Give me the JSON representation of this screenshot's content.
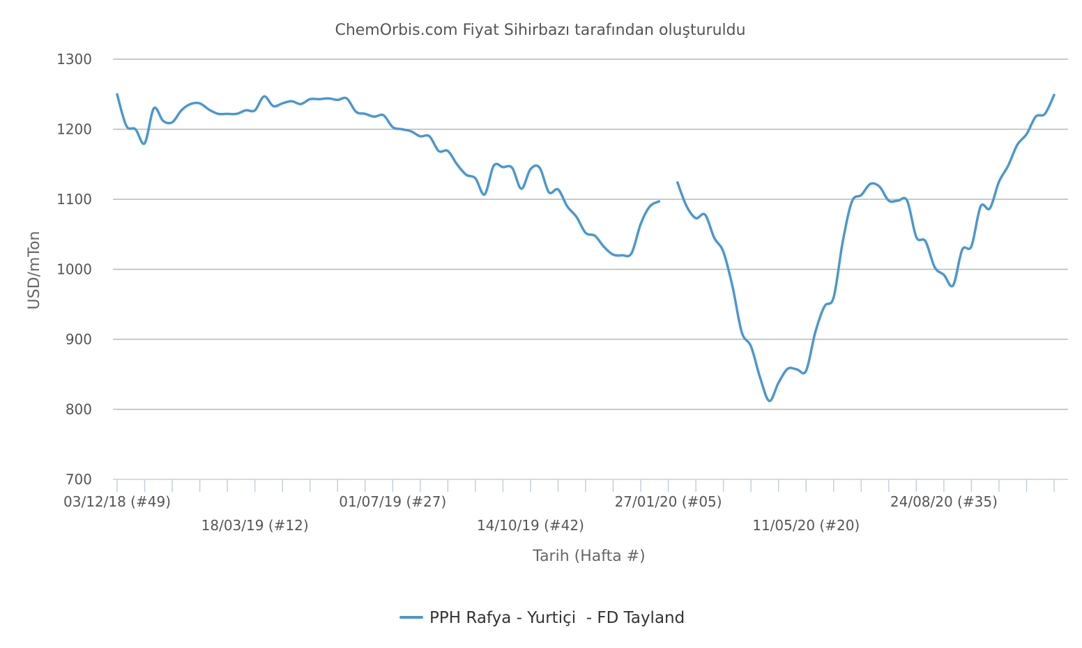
{
  "chart_data": {
    "type": "line",
    "subtitle": "ChemOrbis.com Fiyat Sihirbazı tarafından oluşturuldu",
    "ylabel": "USD/mTon",
    "xlabel": "Tarih (Hafta #)",
    "ylim": [
      700,
      1300
    ],
    "yticks": [
      700,
      800,
      900,
      1000,
      1100,
      1200,
      1300
    ],
    "grid": true,
    "legend_position": "bottom-center",
    "x_tick_count": 35,
    "x_labels": [
      {
        "index": 0,
        "label": "03/12/18 (#49)",
        "row": 0
      },
      {
        "index": 5,
        "label": "18/03/19 (#12)",
        "row": 1
      },
      {
        "index": 10,
        "label": "01/07/19 (#27)",
        "row": 0
      },
      {
        "index": 15,
        "label": "14/10/19 (#42)",
        "row": 1
      },
      {
        "index": 20,
        "label": "27/01/20 (#05)",
        "row": 0
      },
      {
        "index": 25,
        "label": "11/05/20 (#20)",
        "row": 1
      },
      {
        "index": 30,
        "label": "24/08/20 (#35)",
        "row": 0
      }
    ],
    "series": [
      {
        "name": "PPH Rafya - Yurtiçi  - FD Tayland",
        "color": "#4b97cf",
        "x_start": "03/12/18",
        "x_step_weeks": 1,
        "values": [
          1250,
          1205,
          1200,
          1180,
          1230,
          1212,
          1210,
          1227,
          1236,
          1237,
          1228,
          1222,
          1222,
          1222,
          1227,
          1227,
          1247,
          1233,
          1237,
          1240,
          1236,
          1243,
          1243,
          1244,
          1242,
          1244,
          1225,
          1222,
          1218,
          1220,
          1203,
          1200,
          1197,
          1190,
          1190,
          1169,
          1169,
          1150,
          1135,
          1130,
          1107,
          1148,
          1146,
          1145,
          1115,
          1143,
          1145,
          1110,
          1114,
          1090,
          1075,
          1052,
          1048,
          1032,
          1021,
          1020,
          1023,
          1065,
          1090,
          1097,
          null,
          1124,
          1090,
          1073,
          1078,
          1045,
          1025,
          975,
          910,
          890,
          845,
          812,
          838,
          858,
          857,
          855,
          910,
          947,
          960,
          1040,
          1097,
          1106,
          1122,
          1118,
          1098,
          1098,
          1098,
          1046,
          1040,
          1003,
          992,
          977,
          1028,
          1033,
          1090,
          1087,
          1125,
          1148,
          1178,
          1193,
          1218,
          1222,
          1249
        ]
      }
    ]
  }
}
